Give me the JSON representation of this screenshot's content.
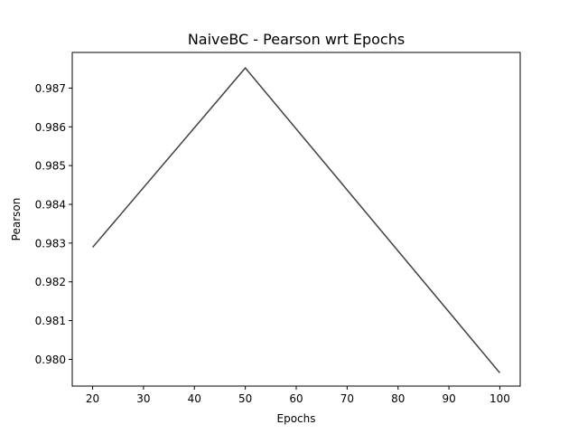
{
  "chart_data": {
    "type": "line",
    "title": "NaiveBC - Pearson wrt Epochs",
    "xlabel": "Epochs",
    "ylabel": "Pearson",
    "x": [
      20,
      50,
      100
    ],
    "series": [
      {
        "values": [
          0.98289,
          0.98752,
          0.97965
        ],
        "color": "#404040"
      }
    ],
    "xlim": [
      16,
      104
    ],
    "ylim": [
      0.97931,
      0.98792
    ],
    "xticks": [
      20,
      30,
      40,
      50,
      60,
      70,
      80,
      90,
      100
    ],
    "xtick_labels": [
      "20",
      "30",
      "40",
      "50",
      "60",
      "70",
      "80",
      "90",
      "100"
    ],
    "yticks": [
      0.98,
      0.981,
      0.982,
      0.983,
      0.984,
      0.985,
      0.986,
      0.987
    ],
    "ytick_labels": [
      "0.980",
      "0.981",
      "0.982",
      "0.983",
      "0.984",
      "0.985",
      "0.986",
      "0.987"
    ],
    "grid": false,
    "legend": false
  }
}
